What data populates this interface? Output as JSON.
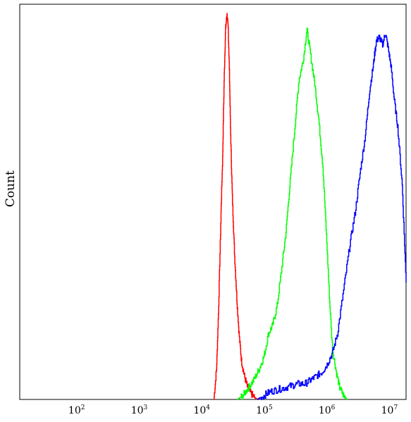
{
  "chart_data": {
    "type": "line",
    "title": "",
    "xlabel": "",
    "ylabel": "Count",
    "x_scale": "log10",
    "xlim": [
      10,
      15000000
    ],
    "ylim": [
      0,
      1.0
    ],
    "grid": false,
    "legend": "none",
    "y_ticks_shown": false,
    "x_ticks": [
      {
        "base": "10",
        "exp": "2",
        "value": 100
      },
      {
        "base": "10",
        "exp": "3",
        "value": 1000
      },
      {
        "base": "10",
        "exp": "4",
        "value": 10000
      },
      {
        "base": "10",
        "exp": "5",
        "value": 100000
      },
      {
        "base": "10",
        "exp": "6",
        "value": 1000000
      },
      {
        "base": "10",
        "exp": "7",
        "value": 10000000
      }
    ],
    "series": [
      {
        "color": "#ff0000",
        "x": [
          12700,
          14000,
          15000,
          16500,
          17500,
          18500,
          19500,
          20500,
          21500,
          22500,
          23500,
          25000,
          27000,
          29500,
          32000,
          35000,
          39000,
          44000,
          50000,
          57000,
          62000
        ],
        "y": [
          0.0,
          0.08,
          0.22,
          0.48,
          0.62,
          0.82,
          0.95,
          0.99,
          0.95,
          0.84,
          0.68,
          0.52,
          0.38,
          0.26,
          0.17,
          0.1,
          0.06,
          0.03,
          0.015,
          0.005,
          0.0
        ]
      },
      {
        "color": "#00ff00",
        "x": [
          30000,
          37000,
          45000,
          55000,
          68000,
          80000,
          95000,
          110000,
          130000,
          155000,
          180000,
          210000,
          250000,
          290000,
          340000,
          390000,
          450000,
          520000,
          600000,
          700000,
          800000,
          900000,
          1000000,
          1150000,
          1300000,
          1500000,
          1700000
        ],
        "y": [
          0.0,
          0.01,
          0.03,
          0.05,
          0.08,
          0.11,
          0.17,
          0.19,
          0.24,
          0.34,
          0.43,
          0.56,
          0.7,
          0.82,
          0.87,
          0.95,
          0.88,
          0.81,
          0.72,
          0.6,
          0.42,
          0.25,
          0.13,
          0.07,
          0.03,
          0.01,
          0.0
        ]
      },
      {
        "color": "#0000ff",
        "x": [
          62000,
          80000,
          100000,
          130000,
          170000,
          220000,
          280000,
          360000,
          450000,
          550000,
          680000,
          820000,
          1000000,
          1200000,
          1500000,
          1900000,
          2300000,
          2800000,
          3300000,
          3900000,
          4500000,
          5000000,
          5600000,
          6300000,
          7000000,
          7800000,
          8700000,
          9700000,
          11000000,
          13000000,
          15000000
        ],
        "y": [
          0.0,
          0.01,
          0.02,
          0.025,
          0.03,
          0.035,
          0.04,
          0.04,
          0.05,
          0.06,
          0.07,
          0.09,
          0.12,
          0.17,
          0.28,
          0.4,
          0.48,
          0.59,
          0.67,
          0.79,
          0.86,
          0.92,
          0.93,
          0.91,
          0.94,
          0.9,
          0.85,
          0.77,
          0.7,
          0.55,
          0.3
        ]
      }
    ]
  }
}
